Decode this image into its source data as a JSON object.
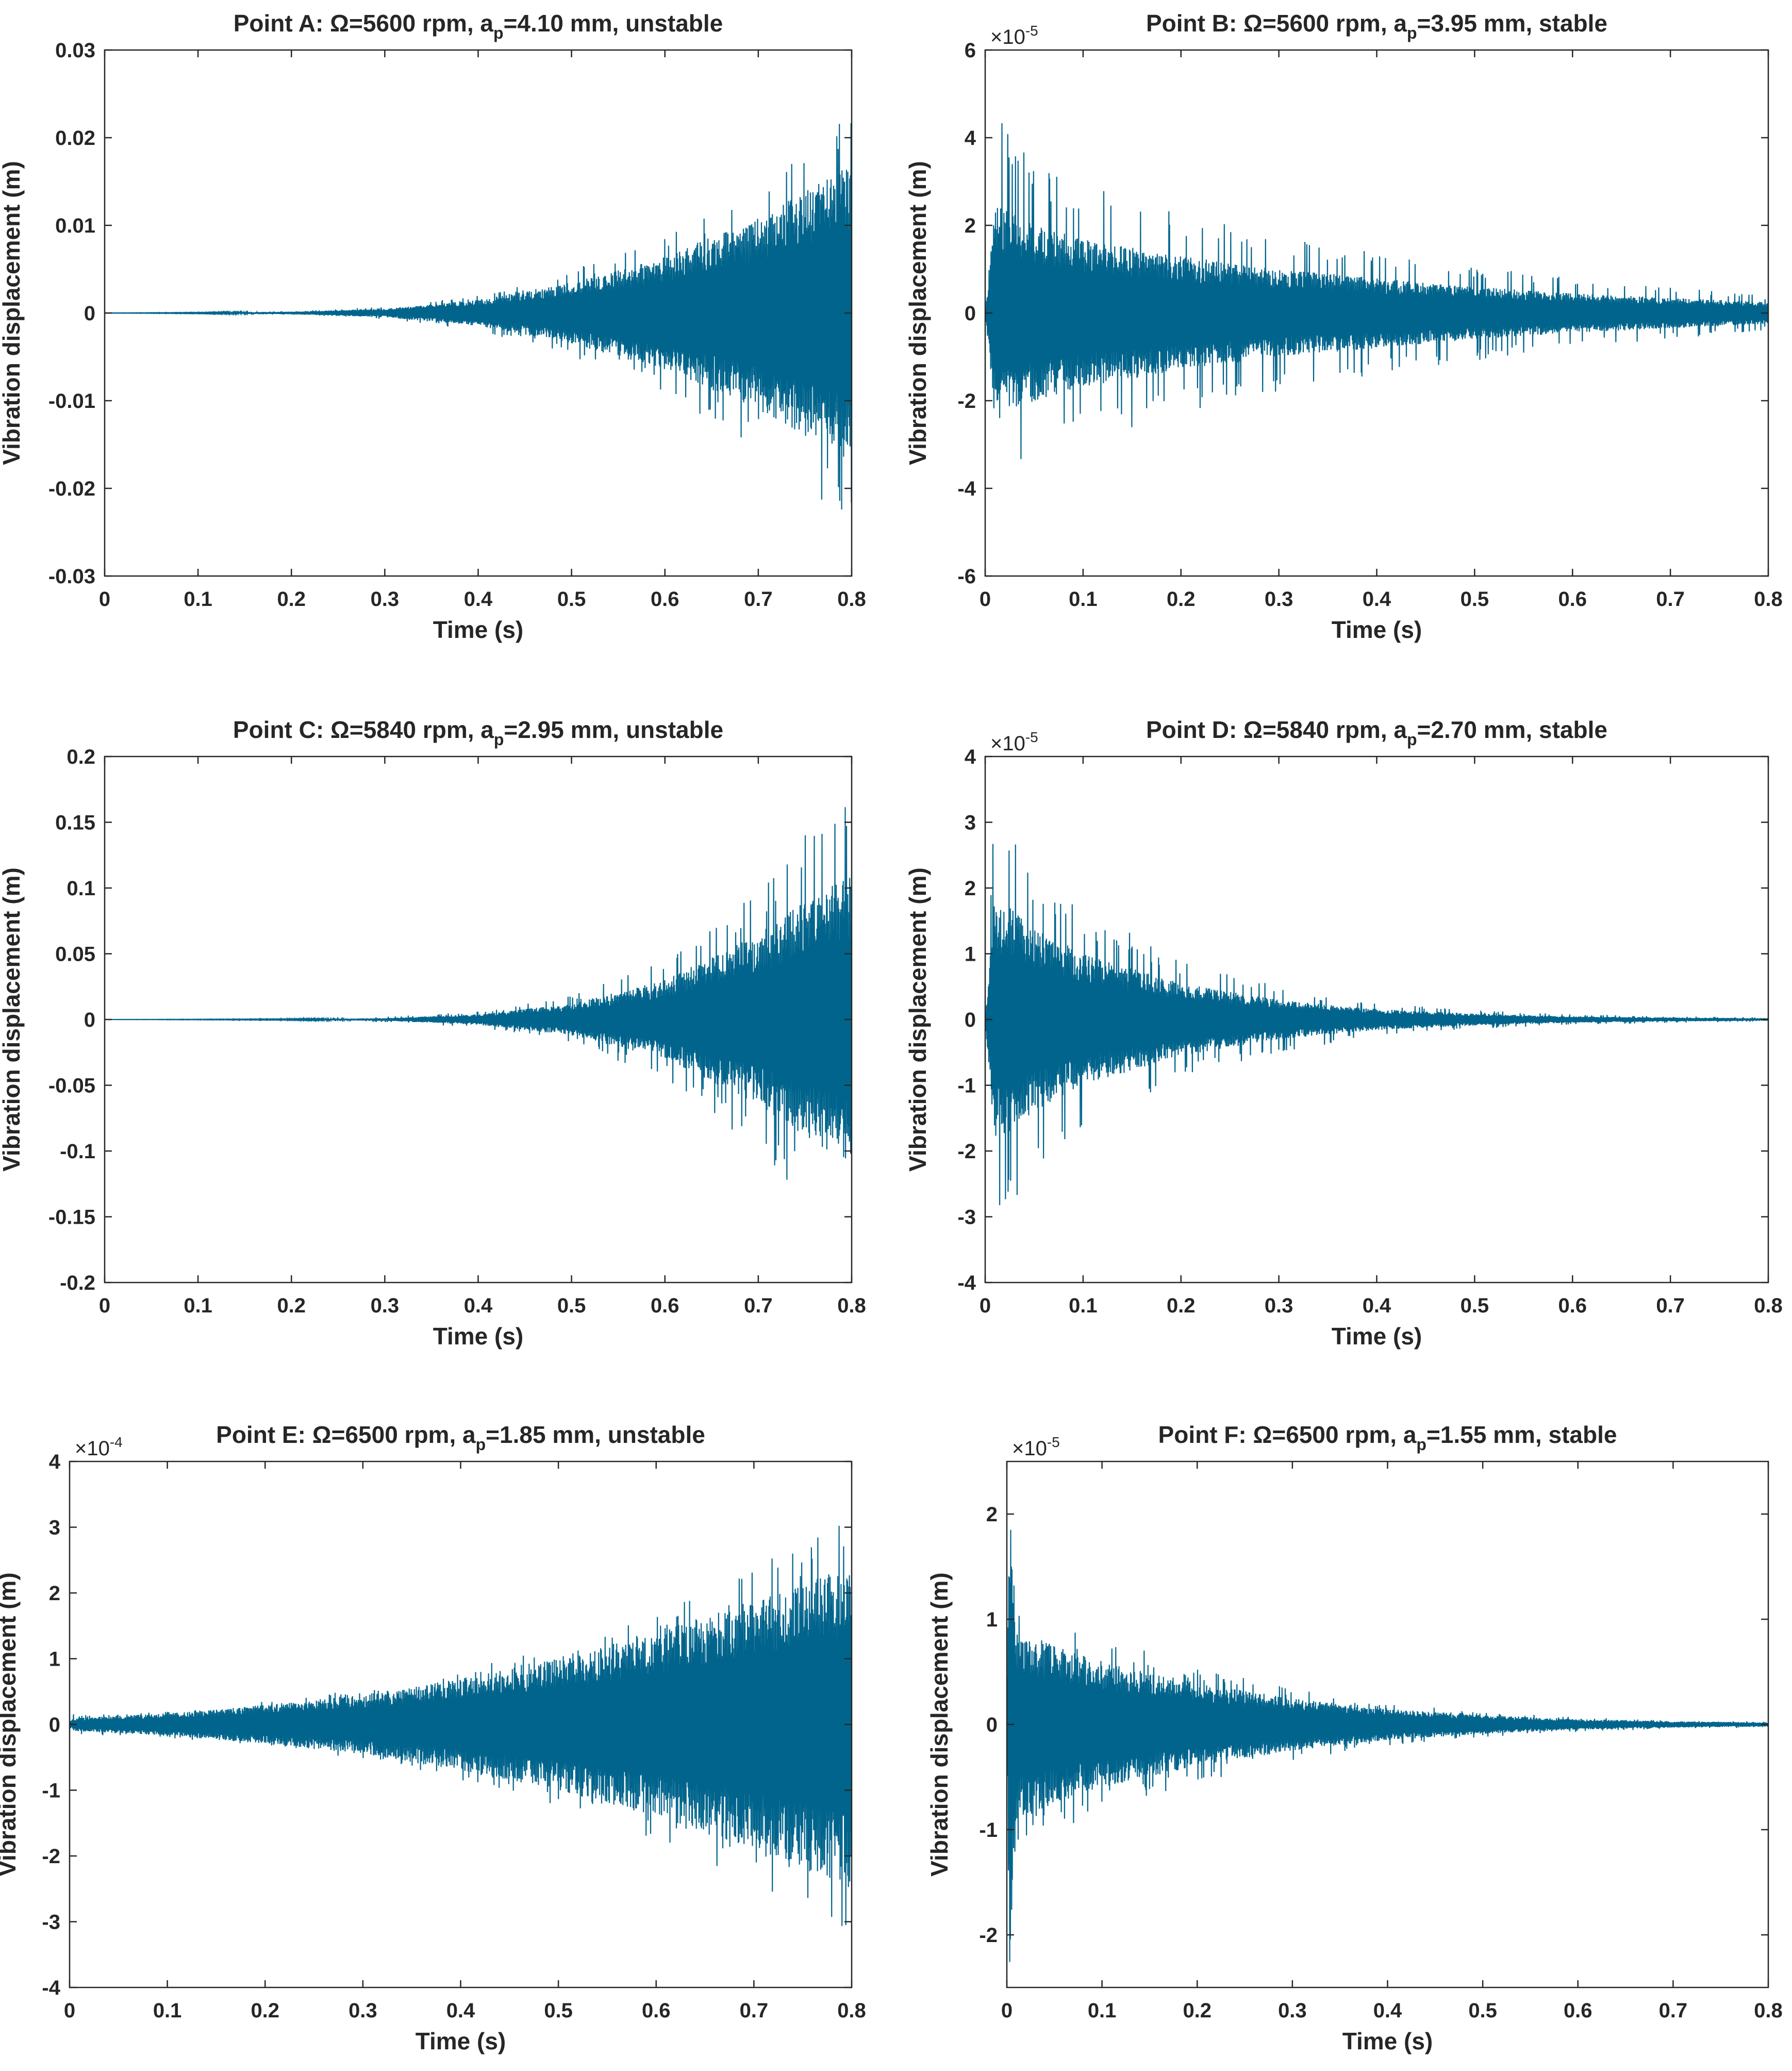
{
  "chart_data": [
    {
      "type": "line",
      "title_prefix": "Point A: Ω=5600 rpm, a",
      "title_subscript": "p",
      "title_suffix": "=4.10 mm, unstable",
      "xlabel": "Time (s)",
      "ylabel": "Vibration displacement (m)",
      "xlim": [
        0,
        0.8
      ],
      "ylim": [
        -0.03,
        0.03
      ],
      "xtick_labels": [
        "0",
        "0.1",
        "0.2",
        "0.3",
        "0.4",
        "0.5",
        "0.6",
        "0.7",
        "0.8"
      ],
      "ytick_labels": [
        "-0.03",
        "-0.02",
        "-0.01",
        "0",
        "0.01",
        "0.02",
        "0.03"
      ],
      "exponent_label": "",
      "exponent_power": "",
      "series": [
        {
          "name": "vibration displacement",
          "color": "#00648c",
          "envelope_t": [
            0,
            0.1,
            0.2,
            0.3,
            0.4,
            0.5,
            0.6,
            0.7,
            0.75,
            0.8
          ],
          "envelope_amp": [
            1e-05,
            4e-05,
            0.00015,
            0.0005,
            0.0015,
            0.0035,
            0.0065,
            0.011,
            0.014,
            0.017
          ],
          "spike_amp": [
            1e-05,
            6e-05,
            0.0002,
            0.0007,
            0.002,
            0.005,
            0.009,
            0.016,
            0.021,
            0.025
          ]
        }
      ]
    },
    {
      "type": "line",
      "title_prefix": "Point B: Ω=5600 rpm, a",
      "title_subscript": "p",
      "title_suffix": "=3.95 mm, stable",
      "xlabel": "Time (s)",
      "ylabel": "Vibration displacement (m)",
      "xlim": [
        0,
        0.8
      ],
      "ylim": [
        -6,
        6
      ],
      "xtick_labels": [
        "0",
        "0.1",
        "0.2",
        "0.3",
        "0.4",
        "0.5",
        "0.6",
        "0.7",
        "0.8"
      ],
      "ytick_labels": [
        "-6",
        "-4",
        "-2",
        "0",
        "2",
        "4",
        "6"
      ],
      "exponent_label": "×10",
      "exponent_power": "-5",
      "series": [
        {
          "name": "vibration displacement",
          "color": "#00648c",
          "envelope_t": [
            0,
            0.01,
            0.05,
            0.1,
            0.2,
            0.3,
            0.4,
            0.5,
            0.6,
            0.7,
            0.8
          ],
          "envelope_amp": [
            0,
            2.5,
            2.0,
            1.7,
            1.3,
            1.0,
            0.8,
            0.6,
            0.45,
            0.35,
            0.25
          ],
          "spike_amp": [
            0,
            5.3,
            3.5,
            3.0,
            2.3,
            1.8,
            1.4,
            1.1,
            0.8,
            0.6,
            0.4
          ]
        }
      ]
    },
    {
      "type": "line",
      "title_prefix": "Point C: Ω=5840 rpm, a",
      "title_subscript": "p",
      "title_suffix": "=2.95 mm, unstable",
      "xlabel": "Time (s)",
      "ylabel": "Vibration displacement (m)",
      "xlim": [
        0,
        0.8
      ],
      "ylim": [
        -0.2,
        0.2
      ],
      "xtick_labels": [
        "0",
        "0.1",
        "0.2",
        "0.3",
        "0.4",
        "0.5",
        "0.6",
        "0.7",
        "0.8"
      ],
      "ytick_labels": [
        "-0.2",
        "-0.15",
        "-0.1",
        "-0.05",
        "0",
        "0.05",
        "0.1",
        "0.15",
        "0.2"
      ],
      "exponent_label": "",
      "exponent_power": "",
      "series": [
        {
          "name": "vibration displacement",
          "color": "#00648c",
          "envelope_t": [
            0,
            0.2,
            0.3,
            0.4,
            0.5,
            0.6,
            0.7,
            0.75,
            0.8
          ],
          "envelope_amp": [
            0,
            0.0003,
            0.001,
            0.004,
            0.012,
            0.03,
            0.065,
            0.09,
            0.11
          ],
          "spike_amp": [
            0,
            0.0005,
            0.002,
            0.006,
            0.018,
            0.045,
            0.1,
            0.14,
            0.17
          ]
        }
      ]
    },
    {
      "type": "line",
      "title_prefix": "Point D: Ω=5840 rpm, a",
      "title_subscript": "p",
      "title_suffix": "=2.70 mm, stable",
      "xlabel": "Time (s)",
      "ylabel": "Vibration displacement (m)",
      "xlim": [
        0,
        0.8
      ],
      "ylim": [
        -4,
        4
      ],
      "xtick_labels": [
        "0",
        "0.1",
        "0.2",
        "0.3",
        "0.4",
        "0.5",
        "0.6",
        "0.7",
        "0.8"
      ],
      "ytick_labels": [
        "-4",
        "-3",
        "-2",
        "-1",
        "0",
        "1",
        "2",
        "3",
        "4"
      ],
      "exponent_label": "×10",
      "exponent_power": "-5",
      "series": [
        {
          "name": "vibration displacement",
          "color": "#00648c",
          "envelope_t": [
            0,
            0.01,
            0.05,
            0.1,
            0.2,
            0.3,
            0.4,
            0.5,
            0.6,
            0.7,
            0.8
          ],
          "envelope_amp": [
            0,
            1.9,
            1.4,
            1.0,
            0.55,
            0.3,
            0.16,
            0.09,
            0.05,
            0.03,
            0.02
          ],
          "spike_amp": [
            0,
            3.5,
            2.3,
            1.7,
            0.9,
            0.5,
            0.25,
            0.14,
            0.08,
            0.05,
            0.03
          ]
        }
      ]
    },
    {
      "type": "line",
      "title_prefix": "Point E: Ω=6500 rpm, a",
      "title_subscript": "p",
      "title_suffix": "=1.85 mm, unstable",
      "xlabel": "Time (s)",
      "ylabel": "Vibration displacement (m)",
      "xlim": [
        0,
        0.8
      ],
      "ylim": [
        -4,
        4
      ],
      "xtick_labels": [
        "0",
        "0.1",
        "0.2",
        "0.3",
        "0.4",
        "0.5",
        "0.6",
        "0.7",
        "0.8"
      ],
      "ytick_labels": [
        "-4",
        "-3",
        "-2",
        "-1",
        "0",
        "1",
        "2",
        "3",
        "4"
      ],
      "exponent_label": "×10",
      "exponent_power": "-4",
      "series": [
        {
          "name": "vibration displacement",
          "color": "#00648c",
          "envelope_t": [
            0,
            0.005,
            0.1,
            0.2,
            0.3,
            0.4,
            0.5,
            0.6,
            0.7,
            0.8
          ],
          "envelope_amp": [
            0.05,
            0.1,
            0.17,
            0.3,
            0.45,
            0.7,
            1.0,
            1.4,
            1.9,
            2.5
          ],
          "spike_amp": [
            0.2,
            0.15,
            0.2,
            0.35,
            0.55,
            0.85,
            1.25,
            1.75,
            2.4,
            3.2
          ]
        }
      ]
    },
    {
      "type": "line",
      "title_prefix": "Point F: Ω=6500 rpm, a",
      "title_subscript": "p",
      "title_suffix": "=1.55 mm, stable",
      "xlabel": "Time (s)",
      "ylabel": "Vibration displacement (m)",
      "xlim": [
        0,
        0.8
      ],
      "ylim": [
        -2.5,
        2.5
      ],
      "xtick_labels": [
        "0",
        "0.1",
        "0.2",
        "0.3",
        "0.4",
        "0.5",
        "0.6",
        "0.7",
        "0.8"
      ],
      "ytick_labels": [
        "-2",
        "-1",
        "0",
        "1",
        "2"
      ],
      "exponent_label": "×10",
      "exponent_power": "-5",
      "series": [
        {
          "name": "vibration displacement",
          "color": "#00648c",
          "envelope_t": [
            0,
            0.003,
            0.01,
            0.05,
            0.1,
            0.2,
            0.3,
            0.4,
            0.5,
            0.6,
            0.7,
            0.8
          ],
          "envelope_amp": [
            0,
            2.4,
            0.9,
            0.75,
            0.6,
            0.4,
            0.25,
            0.15,
            0.09,
            0.05,
            0.03,
            0.02
          ],
          "spike_amp": [
            0,
            2.5,
            1.15,
            1.0,
            0.85,
            0.55,
            0.35,
            0.2,
            0.12,
            0.07,
            0.04,
            0.03
          ]
        }
      ]
    }
  ]
}
